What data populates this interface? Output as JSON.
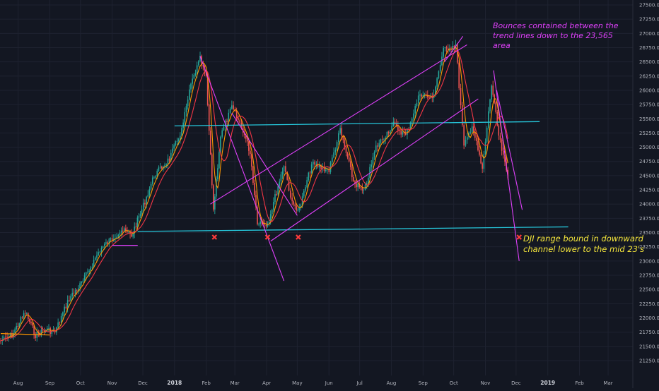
{
  "chart_data": {
    "type": "line",
    "title": "",
    "xlabel": "",
    "ylabel": "",
    "ylim": [
      21000,
      27500
    ],
    "y_ticks": [
      "21250.00",
      "21500.00",
      "21750.00",
      "22000.00",
      "22250.00",
      "22500.00",
      "22750.00",
      "23000.00",
      "23250.00",
      "23500.00",
      "23750.00",
      "24000.00",
      "24250.00",
      "24500.00",
      "24750.00",
      "25000.00",
      "25250.00",
      "25500.00",
      "25750.00",
      "26000.00",
      "26250.00",
      "26500.00",
      "26750.00",
      "27000.00",
      "27250.00",
      "27500.00"
    ],
    "x_ticks": [
      {
        "label": "Aug",
        "bold": false
      },
      {
        "label": "Sep",
        "bold": false
      },
      {
        "label": "Oct",
        "bold": false
      },
      {
        "label": "Nov",
        "bold": false
      },
      {
        "label": "Dec",
        "bold": false
      },
      {
        "label": "2018",
        "bold": true
      },
      {
        "label": "Feb",
        "bold": false
      },
      {
        "label": "Mar",
        "bold": false
      },
      {
        "label": "Apr",
        "bold": false
      },
      {
        "label": "May",
        "bold": false
      },
      {
        "label": "Jun",
        "bold": false
      },
      {
        "label": "Jul",
        "bold": false
      },
      {
        "label": "Aug",
        "bold": false
      },
      {
        "label": "Sep",
        "bold": false
      },
      {
        "label": "Oct",
        "bold": false
      },
      {
        "label": "Nov",
        "bold": false
      },
      {
        "label": "Dec",
        "bold": false
      },
      {
        "label": "2019",
        "bold": true
      },
      {
        "label": "Feb",
        "bold": false
      },
      {
        "label": "Mar",
        "bold": false
      }
    ],
    "grid": true,
    "series": [
      {
        "color": "#f23645",
        "values": [
          [
            "2017-07-15",
            21600
          ],
          [
            "2017-07-26",
            21700
          ],
          [
            "2017-08-08",
            22100
          ],
          [
            "2017-08-18",
            21700
          ],
          [
            "2017-08-28",
            21800
          ],
          [
            "2017-09-06",
            21750
          ],
          [
            "2017-09-20",
            22350
          ],
          [
            "2017-10-02",
            22600
          ],
          [
            "2017-10-20",
            23200
          ],
          [
            "2017-11-01",
            23400
          ],
          [
            "2017-11-10",
            23550
          ],
          [
            "2017-11-20",
            23450
          ],
          [
            "2017-11-30",
            23900
          ],
          [
            "2017-12-12",
            24500
          ],
          [
            "2017-12-27",
            24800
          ],
          [
            "2018-01-08",
            25300
          ],
          [
            "2018-01-17",
            26100
          ],
          [
            "2018-01-26",
            26550
          ],
          [
            "2018-02-01",
            26200
          ],
          [
            "2018-02-08",
            23900
          ],
          [
            "2018-02-15",
            25200
          ],
          [
            "2018-02-26",
            25700
          ],
          [
            "2018-03-09",
            25300
          ],
          [
            "2018-03-16",
            24900
          ],
          [
            "2018-03-23",
            23700
          ],
          [
            "2018-04-02",
            23650
          ],
          [
            "2018-04-18",
            24700
          ],
          [
            "2018-04-26",
            24000
          ],
          [
            "2018-05-03",
            23900
          ],
          [
            "2018-05-15",
            24700
          ],
          [
            "2018-06-01",
            24600
          ],
          [
            "2018-06-12",
            25300
          ],
          [
            "2018-06-25",
            24400
          ],
          [
            "2018-07-05",
            24200
          ],
          [
            "2018-07-17",
            25000
          ],
          [
            "2018-08-03",
            25400
          ],
          [
            "2018-08-15",
            25200
          ],
          [
            "2018-08-29",
            25950
          ],
          [
            "2018-09-10",
            25850
          ],
          [
            "2018-09-21",
            26700
          ],
          [
            "2018-10-03",
            26800
          ],
          [
            "2018-10-11",
            25000
          ],
          [
            "2018-10-19",
            25400
          ],
          [
            "2018-10-29",
            24600
          ],
          [
            "2018-11-07",
            26100
          ],
          [
            "2018-11-14",
            25200
          ],
          [
            "2018-11-23",
            24450
          ]
        ]
      }
    ]
  },
  "annotations": {
    "top_text": [
      "Bounces contained between the",
      "trend lines down to the 23,565",
      "area"
    ],
    "bottom_text": [
      "DJI range bound in downward",
      "channel lower to the mid 23's"
    ]
  },
  "colors": {
    "background": "#131722",
    "grid": "#1e2230",
    "candle_up": "#26a69a",
    "candle_down": "#ef5350",
    "ma_fast": "#ff9800",
    "ma_slow": "#f23645",
    "trendline": "#e040fb",
    "support": "#26c6da",
    "base_line": "#ff9800",
    "marker": "#ff3b3b"
  }
}
